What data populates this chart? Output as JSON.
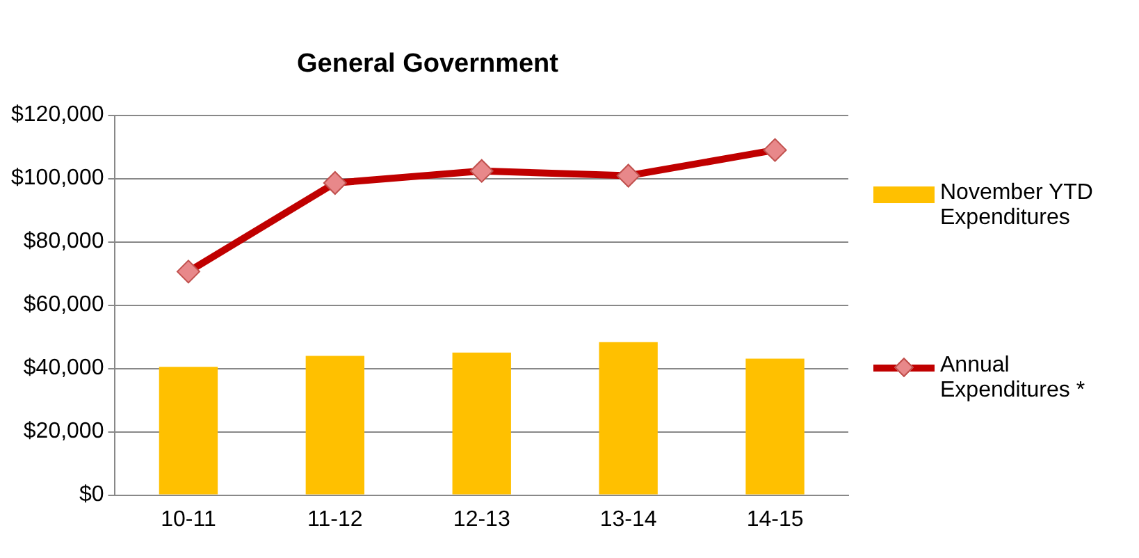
{
  "chart_data": {
    "type": "bar",
    "title": "General Government",
    "categories": [
      "10-11",
      "11-12",
      "12-13",
      "13-14",
      "14-15"
    ],
    "series": [
      {
        "name": "November YTD Expenditures",
        "color": "#ffc000",
        "values": [
          40500,
          44000,
          45000,
          48300,
          43100
        ]
      },
      {
        "name": "Annual Expenditures *",
        "type": "line",
        "color": "#c00000",
        "marker": "diamond",
        "values": [
          70600,
          98600,
          102400,
          100900,
          109000
        ]
      }
    ],
    "ylim": [
      0,
      120000
    ],
    "yticks": [
      {
        "value": 0,
        "label": "$0"
      },
      {
        "value": 20000,
        "label": "$20,000"
      },
      {
        "value": 40000,
        "label": "$40,000"
      },
      {
        "value": 60000,
        "label": "$60,000"
      },
      {
        "value": 80000,
        "label": "$80,000"
      },
      {
        "value": 100000,
        "label": "$100,000"
      },
      {
        "value": 120000,
        "label": "$120,000"
      }
    ],
    "grid": "y",
    "legend": "right"
  }
}
